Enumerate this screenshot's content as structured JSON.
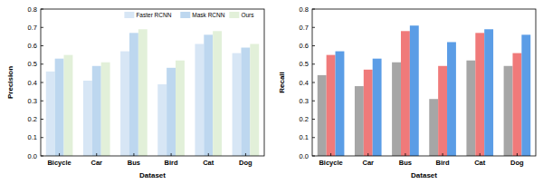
{
  "chart_data": [
    {
      "type": "bar",
      "x_label": "Dataset",
      "y_label": "Precision",
      "categories": [
        "Bicycle",
        "Car",
        "Bus",
        "Bird",
        "Cat",
        "Dog"
      ],
      "series": [
        {
          "name": "Faster RCNN",
          "color": "#d7e6f5",
          "values": [
            0.46,
            0.41,
            0.57,
            0.39,
            0.61,
            0.56
          ]
        },
        {
          "name": "Mask RCNN",
          "color": "#bdd7ef",
          "values": [
            0.53,
            0.49,
            0.67,
            0.48,
            0.66,
            0.59
          ]
        },
        {
          "name": "Ours",
          "color": "#e2f0d9",
          "values": [
            0.55,
            0.51,
            0.69,
            0.52,
            0.68,
            0.61
          ]
        }
      ],
      "ylim": [
        0,
        0.8
      ],
      "yticks": [
        {
          "value": 0,
          "label": "0.0"
        },
        0.1,
        0.2,
        0.3,
        0.4,
        0.5,
        0.6,
        0.7,
        0.8
      ],
      "legend": "top-right"
    },
    {
      "type": "bar",
      "x_label": "Dataset",
      "y_label": "Recall",
      "categories": [
        "Bicycle",
        "Car",
        "Bus",
        "Bird",
        "Cat",
        "Dog"
      ],
      "series": [
        {
          "color": "#a6a6a6",
          "values": [
            0.44,
            0.38,
            0.51,
            0.31,
            0.52,
            0.49
          ]
        },
        {
          "color": "#f07a7a",
          "values": [
            0.55,
            0.47,
            0.68,
            0.49,
            0.67,
            0.56
          ]
        },
        {
          "color": "#5b9de6",
          "values": [
            0.57,
            0.53,
            0.71,
            0.62,
            0.69,
            0.66
          ]
        }
      ],
      "ylim": [
        0,
        0.8
      ],
      "yticks": [
        {
          "value": 0,
          "label": "0.0"
        },
        0.1,
        0.2,
        0.3,
        0.4,
        0.5,
        0.6,
        0.7,
        0.8
      ]
    }
  ]
}
